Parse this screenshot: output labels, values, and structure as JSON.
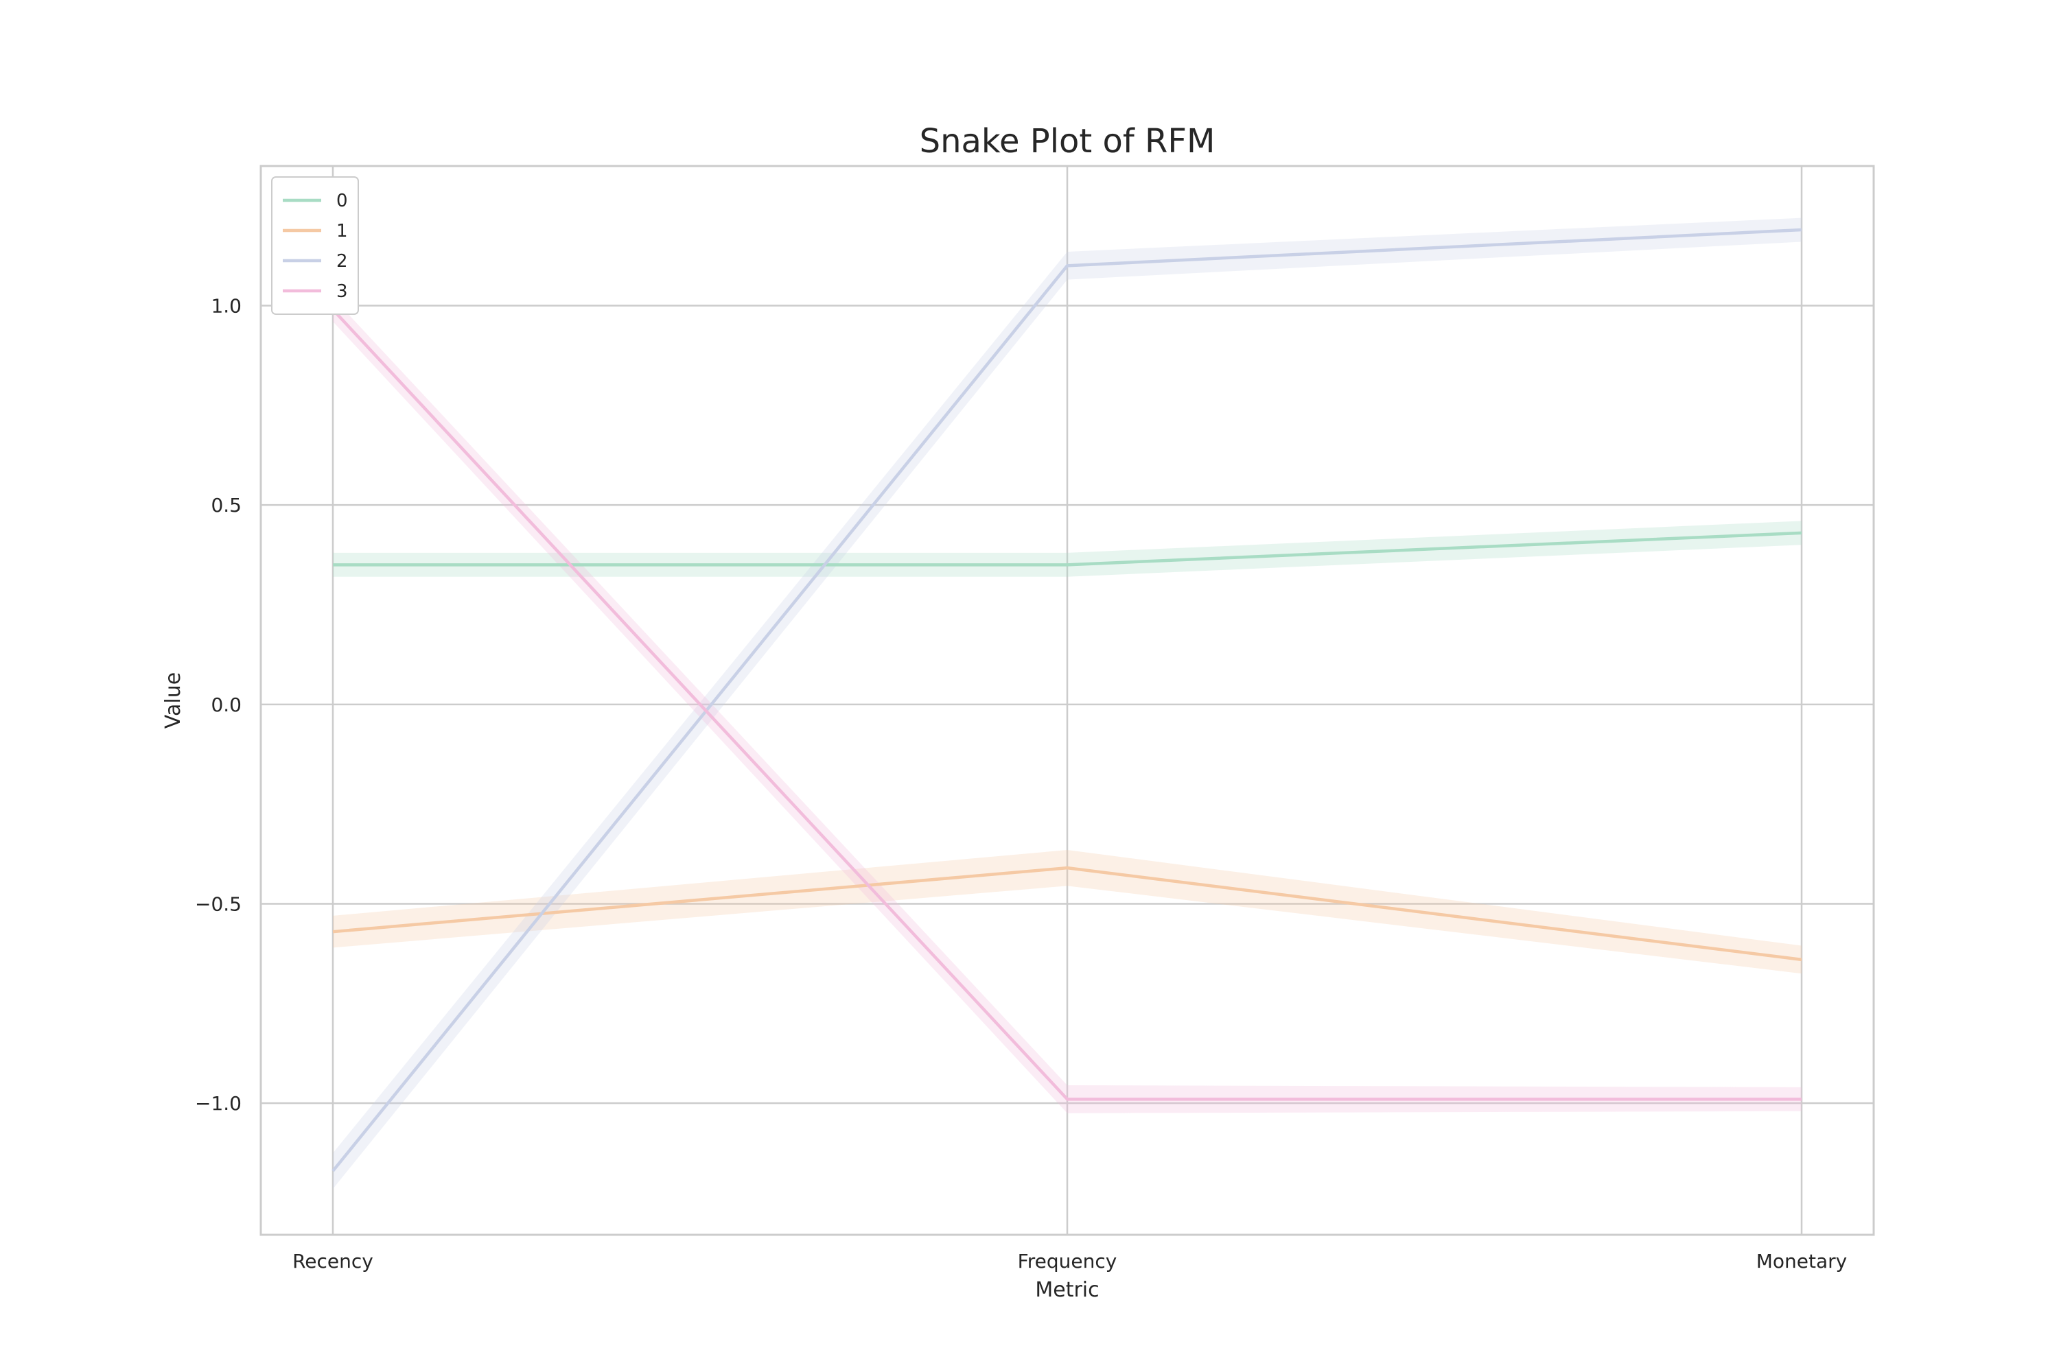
{
  "chart_data": {
    "type": "line",
    "title": "Snake Plot of RFM",
    "xlabel": "Metric",
    "ylabel": "Value",
    "categories": [
      "Recency",
      "Frequency",
      "Monetary"
    ],
    "ylim": [
      -1.33,
      1.35
    ],
    "yticks": [
      1.0,
      0.5,
      0.0,
      -0.5,
      -1.0
    ],
    "ytick_labels": [
      "1.0",
      "0.5",
      "0.0",
      "−0.5",
      "−1.0"
    ],
    "grid": true,
    "legend_position": "top-left",
    "series": [
      {
        "name": "0",
        "color": "#a8dcc4",
        "values": [
          0.35,
          0.35,
          0.43
        ],
        "ci": [
          0.03,
          0.03,
          0.03
        ]
      },
      {
        "name": "1",
        "color": "#f5c9a4",
        "values": [
          -0.57,
          -0.41,
          -0.64
        ],
        "ci": [
          0.04,
          0.045,
          0.035
        ]
      },
      {
        "name": "2",
        "color": "#c8d0e6",
        "values": [
          -1.17,
          1.1,
          1.19
        ],
        "ci": [
          0.045,
          0.035,
          0.03
        ]
      },
      {
        "name": "3",
        "color": "#f2bcdb",
        "values": [
          0.99,
          -0.99,
          -0.99
        ],
        "ci": [
          0.03,
          0.035,
          0.03
        ]
      }
    ]
  }
}
